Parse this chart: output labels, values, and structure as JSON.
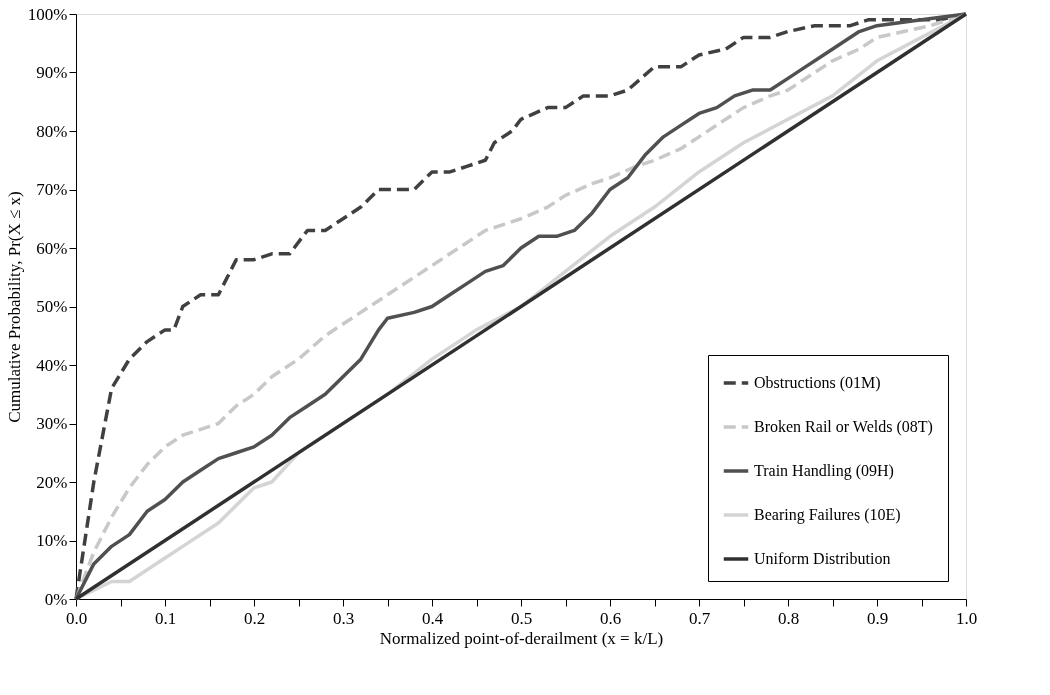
{
  "chart_data": {
    "type": "line",
    "xlabel": "Normalized point-of-derailment (x = k/L)",
    "ylabel": "Cumulative Probability, Pr(X ≤ x)",
    "xlim": [
      0,
      1
    ],
    "ylim": [
      0,
      100
    ],
    "xticks": [
      {
        "value": 0,
        "label": "0.0"
      },
      {
        "value": 0.05,
        "label": null
      },
      0.1,
      {
        "value": 0.15,
        "label": null
      },
      0.2,
      {
        "value": 0.25,
        "label": null
      },
      0.3,
      {
        "value": 0.35,
        "label": null
      },
      0.4,
      {
        "value": 0.45,
        "label": null
      },
      0.5,
      {
        "value": 0.55,
        "label": null
      },
      0.6,
      {
        "value": 0.65,
        "label": null
      },
      0.7,
      {
        "value": 0.75,
        "label": null
      },
      0.8,
      {
        "value": 0.85,
        "label": null
      },
      0.9,
      {
        "value": 0.95,
        "label": null
      },
      {
        "value": 1,
        "label": "1.0"
      }
    ],
    "yticks": [
      {
        "value": 0,
        "label": "0%"
      },
      {
        "value": 10,
        "label": "10%"
      },
      {
        "value": 20,
        "label": "20%"
      },
      {
        "value": 30,
        "label": "30%"
      },
      {
        "value": 40,
        "label": "40%"
      },
      {
        "value": 50,
        "label": "50%"
      },
      {
        "value": 60,
        "label": "60%"
      },
      {
        "value": 70,
        "label": "70%"
      },
      {
        "value": 80,
        "label": "80%"
      },
      {
        "value": 90,
        "label": "90%"
      },
      {
        "value": 100,
        "label": "100%"
      }
    ],
    "grid": false,
    "legend": "bottom right",
    "marker": "none",
    "series": [
      {
        "name": "Obstructions (01M)",
        "color": "#404040",
        "line_style": "dashed",
        "x": [
          0,
          0.02,
          0.04,
          0.06,
          0.08,
          0.1,
          0.11,
          0.12,
          0.14,
          0.16,
          0.18,
          0.2,
          0.22,
          0.24,
          0.26,
          0.28,
          0.3,
          0.32,
          0.34,
          0.38,
          0.4,
          0.42,
          0.44,
          0.46,
          0.47,
          0.49,
          0.5,
          0.53,
          0.55,
          0.57,
          0.6,
          0.62,
          0.65,
          0.68,
          0.7,
          0.73,
          0.75,
          0.78,
          0.8,
          0.83,
          0.87,
          0.89,
          0.92,
          0.97,
          1.0
        ],
        "values": [
          0,
          20,
          36,
          41,
          44,
          46,
          46,
          50,
          52,
          52,
          58,
          58,
          59,
          59,
          63,
          63,
          65,
          67,
          70,
          70,
          73,
          73,
          74,
          75,
          78,
          80,
          82,
          84,
          84,
          86,
          86,
          87,
          91,
          91,
          93,
          94,
          96,
          96,
          97,
          98,
          98,
          99,
          99,
          99,
          100
        ]
      },
      {
        "name": "Broken Rail or Welds (08T)",
        "color": "#c8c8c8",
        "line_style": "dashed",
        "x": [
          0,
          0.02,
          0.04,
          0.06,
          0.08,
          0.1,
          0.12,
          0.14,
          0.16,
          0.18,
          0.2,
          0.22,
          0.25,
          0.28,
          0.3,
          0.33,
          0.35,
          0.38,
          0.4,
          0.43,
          0.46,
          0.48,
          0.5,
          0.53,
          0.55,
          0.58,
          0.6,
          0.63,
          0.65,
          0.68,
          0.7,
          0.73,
          0.75,
          0.78,
          0.8,
          0.83,
          0.85,
          0.88,
          0.9,
          0.93,
          0.96,
          1.0
        ],
        "values": [
          0,
          8,
          14,
          19,
          23,
          26,
          28,
          29,
          30,
          33,
          35,
          38,
          41,
          45,
          47,
          50,
          52,
          55,
          57,
          60,
          63,
          64,
          65,
          67,
          69,
          71,
          72,
          74,
          75,
          77,
          79,
          82,
          84,
          86,
          87,
          90,
          92,
          94,
          96,
          97,
          98,
          100
        ]
      },
      {
        "name": "Train Handling (09H)",
        "color": "#505050",
        "line_style": "solid",
        "x": [
          0,
          0.02,
          0.04,
          0.06,
          0.08,
          0.1,
          0.12,
          0.14,
          0.16,
          0.18,
          0.2,
          0.22,
          0.24,
          0.26,
          0.28,
          0.3,
          0.32,
          0.34,
          0.35,
          0.38,
          0.4,
          0.42,
          0.44,
          0.46,
          0.48,
          0.5,
          0.52,
          0.54,
          0.56,
          0.58,
          0.6,
          0.62,
          0.64,
          0.66,
          0.68,
          0.7,
          0.72,
          0.74,
          0.76,
          0.78,
          0.8,
          0.82,
          0.84,
          0.86,
          0.88,
          0.9,
          0.95,
          1.0
        ],
        "values": [
          0,
          6,
          9,
          11,
          15,
          17,
          20,
          22,
          24,
          25,
          26,
          28,
          31,
          33,
          35,
          38,
          41,
          46,
          48,
          49,
          50,
          52,
          54,
          56,
          57,
          60,
          62,
          62,
          63,
          66,
          70,
          72,
          76,
          79,
          81,
          83,
          84,
          86,
          87,
          87,
          89,
          91,
          93,
          95,
          97,
          98,
          99,
          100
        ]
      },
      {
        "name": "Bearing Failures (10E)",
        "color": "#d4d4d4",
        "line_style": "solid",
        "x": [
          0,
          0.04,
          0.06,
          0.08,
          0.1,
          0.12,
          0.16,
          0.2,
          0.22,
          0.25,
          0.3,
          0.35,
          0.4,
          0.45,
          0.5,
          0.55,
          0.6,
          0.65,
          0.7,
          0.75,
          0.8,
          0.85,
          0.9,
          0.95,
          1.0
        ],
        "values": [
          0,
          3,
          3,
          5,
          7,
          9,
          13,
          19,
          20,
          25,
          30,
          35,
          41,
          46,
          50,
          56,
          62,
          67,
          73,
          78,
          82,
          86,
          92,
          96,
          100
        ]
      },
      {
        "name": "Uniform Distribution",
        "color": "#303030",
        "line_style": "solid",
        "x": [
          0,
          1.0
        ],
        "values": [
          0,
          100
        ]
      }
    ]
  }
}
